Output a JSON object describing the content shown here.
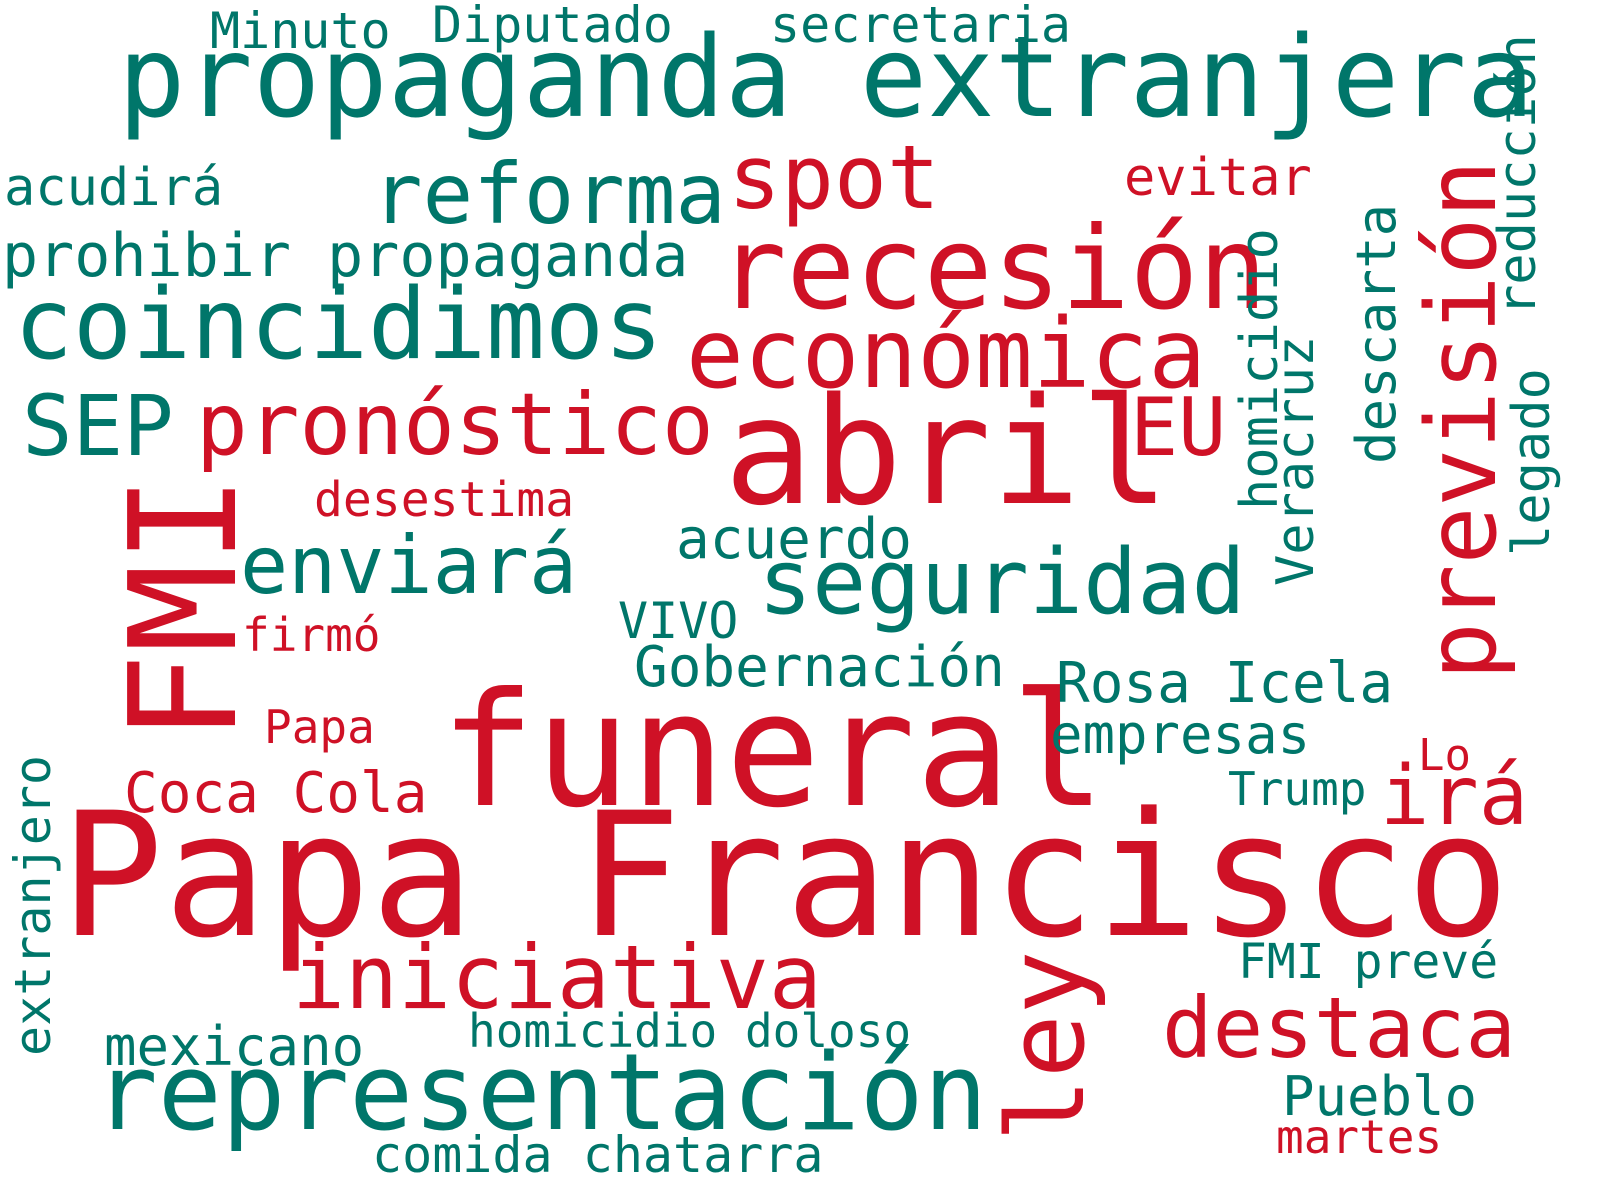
{
  "colors": {
    "red": "#cf1126",
    "green": "#00766a",
    "background": "#ffffff"
  },
  "words": [
    {
      "id": "papa-francisco",
      "text": "Papa Francisco",
      "color": "red",
      "vertical": false
    },
    {
      "id": "propaganda-extranjera",
      "text": "propaganda extranjera",
      "color": "green",
      "vertical": false
    },
    {
      "id": "funeral",
      "text": "funeral",
      "color": "red",
      "vertical": false
    },
    {
      "id": "recesion",
      "text": "recesión",
      "color": "red",
      "vertical": false
    },
    {
      "id": "abril",
      "text": "abril",
      "color": "red",
      "vertical": false
    },
    {
      "id": "fmi",
      "text": "FMI",
      "color": "red",
      "vertical": true
    },
    {
      "id": "representacion",
      "text": "representación",
      "color": "green",
      "vertical": false
    },
    {
      "id": "economica",
      "text": "económica",
      "color": "red",
      "vertical": false
    },
    {
      "id": "coincidimos",
      "text": "coincidimos",
      "color": "green",
      "vertical": false
    },
    {
      "id": "prevision",
      "text": "previsión",
      "color": "red",
      "vertical": true
    },
    {
      "id": "pronostico",
      "text": "pronóstico",
      "color": "red",
      "vertical": false
    },
    {
      "id": "seguridad",
      "text": "seguridad",
      "color": "green",
      "vertical": false
    },
    {
      "id": "iniciativa",
      "text": "iniciativa",
      "color": "red",
      "vertical": false
    },
    {
      "id": "ley",
      "text": "ley",
      "color": "red",
      "vertical": true
    },
    {
      "id": "reforma",
      "text": "reforma",
      "color": "green",
      "vertical": false
    },
    {
      "id": "spot",
      "text": "spot",
      "color": "red",
      "vertical": false
    },
    {
      "id": "destaca",
      "text": "destaca",
      "color": "red",
      "vertical": false
    },
    {
      "id": "sep",
      "text": "SEP",
      "color": "green",
      "vertical": false
    },
    {
      "id": "enviara",
      "text": "enviará",
      "color": "green",
      "vertical": false
    },
    {
      "id": "eu",
      "text": "EU",
      "color": "red",
      "vertical": false
    },
    {
      "id": "ira",
      "text": "irá",
      "color": "red",
      "vertical": false
    },
    {
      "id": "prohibir-propaganda",
      "text": "prohibir propaganda",
      "color": "green",
      "vertical": false
    },
    {
      "id": "gobernacion",
      "text": "Gobernación",
      "color": "green",
      "vertical": false
    },
    {
      "id": "rosa-icela",
      "text": "Rosa Icela",
      "color": "green",
      "vertical": false
    },
    {
      "id": "descarta",
      "text": "descarta",
      "color": "green",
      "vertical": true
    },
    {
      "id": "acuerdo",
      "text": "acuerdo",
      "color": "green",
      "vertical": false
    },
    {
      "id": "empresas",
      "text": "empresas",
      "color": "green",
      "vertical": false
    },
    {
      "id": "mexicano",
      "text": "mexicano",
      "color": "green",
      "vertical": false
    },
    {
      "id": "coca-cola",
      "text": "Coca Cola",
      "color": "red",
      "vertical": false
    },
    {
      "id": "pueblo",
      "text": "Pueblo",
      "color": "green",
      "vertical": false
    },
    {
      "id": "homicidio",
      "text": "homicidio",
      "color": "green",
      "vertical": true
    },
    {
      "id": "fmi-preve",
      "text": "FMI prevé",
      "color": "green",
      "vertical": false
    },
    {
      "id": "homicidio-doloso",
      "text": "homicidio doloso",
      "color": "green",
      "vertical": false
    },
    {
      "id": "comida-chatarra",
      "text": "comida chatarra",
      "color": "green",
      "vertical": false
    },
    {
      "id": "secretaria",
      "text": "secretaria",
      "color": "green",
      "vertical": false
    },
    {
      "id": "diputado",
      "text": "Diputado",
      "color": "green",
      "vertical": false
    },
    {
      "id": "minuto",
      "text": "Minuto",
      "color": "green",
      "vertical": false
    },
    {
      "id": "acudira",
      "text": "acudirá",
      "color": "green",
      "vertical": false
    },
    {
      "id": "evitar",
      "text": "evitar",
      "color": "red",
      "vertical": false
    },
    {
      "id": "reduccion",
      "text": "reducción",
      "color": "green",
      "vertical": true
    },
    {
      "id": "veracruz",
      "text": "Veracruz",
      "color": "green",
      "vertical": true
    },
    {
      "id": "legado",
      "text": "legado",
      "color": "green",
      "vertical": true
    },
    {
      "id": "desestima",
      "text": "desestima",
      "color": "red",
      "vertical": false
    },
    {
      "id": "vivo",
      "text": "VIVO",
      "color": "green",
      "vertical": false
    },
    {
      "id": "firmo",
      "text": "firmó",
      "color": "red",
      "vertical": false
    },
    {
      "id": "papa",
      "text": "Papa",
      "color": "red",
      "vertical": false
    },
    {
      "id": "trump",
      "text": "Trump",
      "color": "green",
      "vertical": false
    },
    {
      "id": "lo",
      "text": "Lo",
      "color": "red",
      "vertical": false
    },
    {
      "id": "extranjero",
      "text": "extranjero",
      "color": "green",
      "vertical": true
    },
    {
      "id": "martes",
      "text": "martes",
      "color": "red",
      "vertical": false
    }
  ]
}
